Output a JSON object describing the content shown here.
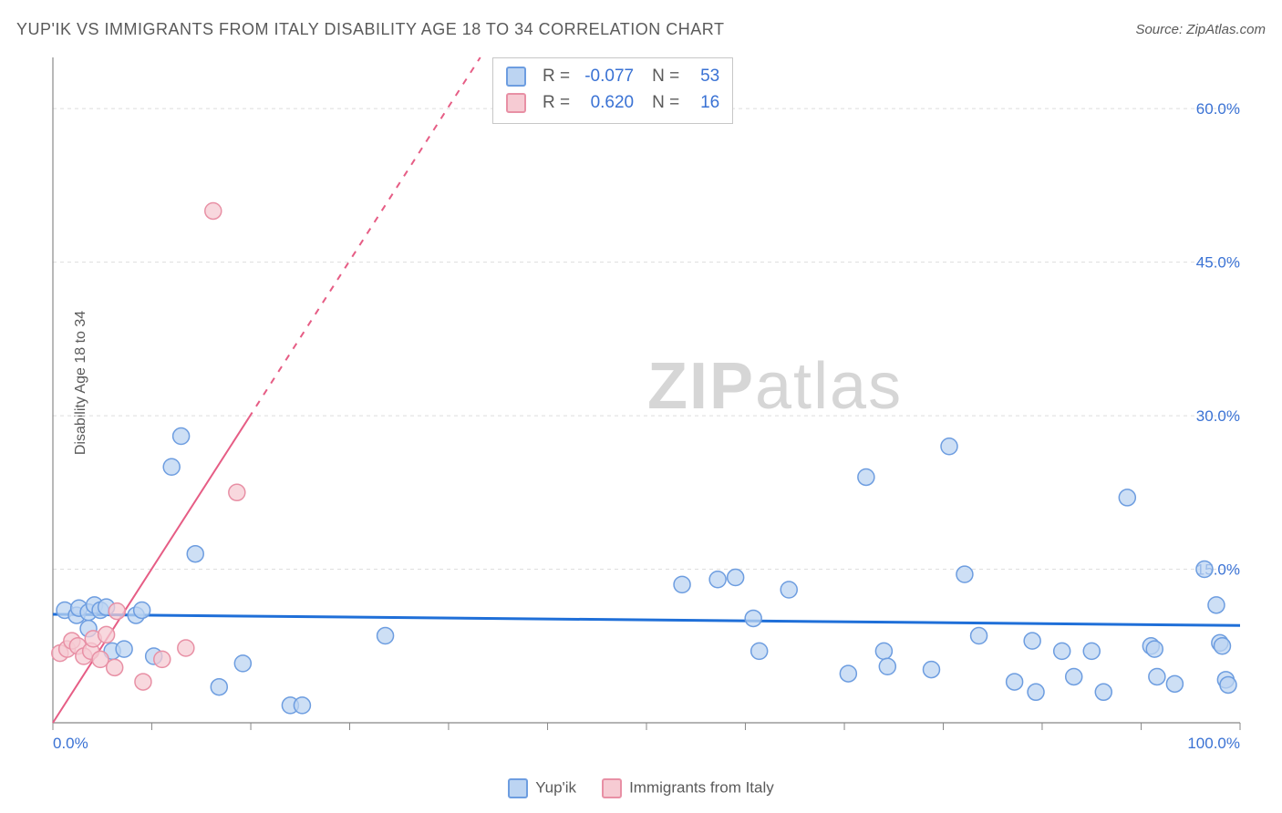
{
  "title": "YUP'IK VS IMMIGRANTS FROM ITALY DISABILITY AGE 18 TO 34 CORRELATION CHART",
  "source": "Source: ZipAtlas.com",
  "y_axis_label": "Disability Age 18 to 34",
  "watermark_bold": "ZIP",
  "watermark_light": "atlas",
  "chart": {
    "type": "scatter",
    "background_color": "#ffffff",
    "grid_color": "#dedede",
    "axis_color": "#888888",
    "xlim": [
      0,
      100
    ],
    "ylim": [
      0,
      65
    ],
    "x_ticks": [
      0,
      8.33,
      16.67,
      25,
      33.33,
      41.67,
      50,
      58.33,
      66.67,
      75,
      83.33,
      91.67,
      100
    ],
    "y_gridlines": [
      0,
      15,
      30,
      45,
      60
    ],
    "x_tick_labels": {
      "0": "0.0%",
      "100": "100.0%"
    },
    "y_tick_labels": {
      "15": "15.0%",
      "30": "30.0%",
      "45": "45.0%",
      "60": "60.0%"
    },
    "marker_radius": 9,
    "series": [
      {
        "name": "yupik",
        "label": "Yup'ik",
        "fill": "#bcd4f2",
        "stroke": "#6d9de0",
        "legend_fill": "#bcd4f2",
        "legend_stroke": "#6d9de0",
        "points": [
          [
            1,
            11
          ],
          [
            2,
            10.5
          ],
          [
            2.2,
            11.2
          ],
          [
            3,
            10.8
          ],
          [
            3.5,
            11.5
          ],
          [
            4,
            11
          ],
          [
            4.5,
            11.3
          ],
          [
            3,
            9.2
          ],
          [
            5,
            7
          ],
          [
            6,
            7.2
          ],
          [
            7,
            10.5
          ],
          [
            7.5,
            11
          ],
          [
            8.5,
            6.5
          ],
          [
            10,
            25
          ],
          [
            10.8,
            28
          ],
          [
            12,
            16.5
          ],
          [
            14,
            3.5
          ],
          [
            16,
            5.8
          ],
          [
            20,
            1.7
          ],
          [
            21,
            1.7
          ],
          [
            28,
            8.5
          ],
          [
            53,
            13.5
          ],
          [
            56,
            14
          ],
          [
            57.5,
            14.2
          ],
          [
            59,
            10.2
          ],
          [
            59.5,
            7
          ],
          [
            62,
            13
          ],
          [
            67,
            4.8
          ],
          [
            68.5,
            24
          ],
          [
            70,
            7
          ],
          [
            70.3,
            5.5
          ],
          [
            74,
            5.2
          ],
          [
            75.5,
            27
          ],
          [
            76.8,
            14.5
          ],
          [
            78,
            8.5
          ],
          [
            81,
            4
          ],
          [
            82.5,
            8
          ],
          [
            82.8,
            3
          ],
          [
            85,
            7
          ],
          [
            86,
            4.5
          ],
          [
            87.5,
            7
          ],
          [
            88.5,
            3
          ],
          [
            90.5,
            22
          ],
          [
            92.5,
            7.5
          ],
          [
            92.8,
            7.2
          ],
          [
            93,
            4.5
          ],
          [
            94.5,
            3.8
          ],
          [
            97,
            15
          ],
          [
            98,
            11.5
          ],
          [
            98.3,
            7.8
          ],
          [
            98.5,
            7.5
          ],
          [
            98.8,
            4.2
          ],
          [
            99,
            3.7
          ]
        ],
        "regression": {
          "x1": 0,
          "y1": 10.6,
          "x2": 100,
          "y2": 9.5,
          "dashed": false,
          "color": "#1f6fd8",
          "width": 3
        }
      },
      {
        "name": "italy",
        "label": "Immigrants from Italy",
        "fill": "#f6cbd3",
        "stroke": "#e890a5",
        "legend_fill": "#f6cbd3",
        "legend_stroke": "#e890a5",
        "points": [
          [
            0.6,
            6.8
          ],
          [
            1.2,
            7.2
          ],
          [
            1.6,
            8
          ],
          [
            2.1,
            7.5
          ],
          [
            2.6,
            6.5
          ],
          [
            3.2,
            7
          ],
          [
            3.4,
            8.2
          ],
          [
            4,
            6.2
          ],
          [
            4.5,
            8.6
          ],
          [
            5.2,
            5.4
          ],
          [
            5.4,
            10.9
          ],
          [
            7.6,
            4
          ],
          [
            9.2,
            6.2
          ],
          [
            11.2,
            7.3
          ],
          [
            13.5,
            50
          ],
          [
            15.5,
            22.5
          ]
        ],
        "regression": {
          "x1": 0,
          "y1": 0,
          "x2": 36,
          "y2": 65,
          "dashed_from_x": 16.5,
          "color": "#e65d85",
          "width": 2
        }
      }
    ]
  },
  "stats": {
    "rows": [
      {
        "swatch_fill": "#bcd4f2",
        "swatch_stroke": "#6d9de0",
        "r_label": "R =",
        "r": "-0.077",
        "n_label": "N =",
        "n": "53"
      },
      {
        "swatch_fill": "#f6cbd3",
        "swatch_stroke": "#e890a5",
        "r_label": "R =",
        "r": "0.620",
        "n_label": "N =",
        "n": "16"
      }
    ]
  },
  "legend": {
    "items": [
      {
        "fill": "#bcd4f2",
        "stroke": "#6d9de0",
        "label": "Yup'ik"
      },
      {
        "fill": "#f6cbd3",
        "stroke": "#e890a5",
        "label": "Immigrants from Italy"
      }
    ]
  }
}
